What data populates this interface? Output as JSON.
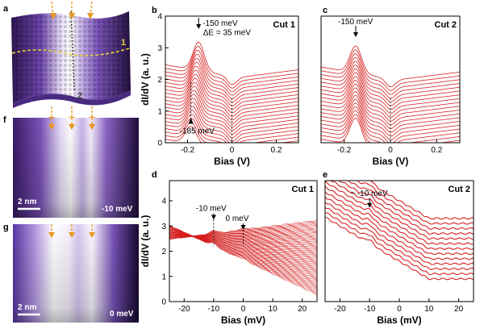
{
  "colors": {
    "curve": "#d61f1f",
    "orange": "#e8961e",
    "yellow": "#e8d23a",
    "axis": "#000000"
  },
  "panels": {
    "a": {
      "label": "a",
      "line1": "1",
      "line2": "2"
    },
    "f": {
      "label": "f",
      "scalebar": "2 nm",
      "energy": "-10 meV"
    },
    "g": {
      "label": "g",
      "scalebar": "2 nm",
      "energy": "0 meV"
    }
  },
  "chart_data": [
    {
      "id": "b",
      "type": "line",
      "label": "b",
      "cut": "Cut 1",
      "xlabel": "Bias (V)",
      "ylabel": "dI/dV (a. u.)",
      "xlim": [
        -0.3,
        0.3
      ],
      "ylim": [
        0,
        4
      ],
      "xticks": [
        -0.2,
        0,
        0.2
      ],
      "xtick_labels": [
        "-0.2",
        "0",
        "0.2"
      ],
      "yticks": [
        0,
        1,
        2,
        3,
        4
      ],
      "ytick_labels": [
        "0",
        "1",
        "2",
        "3",
        "4"
      ],
      "n_curves": 22,
      "peak_start_mV": -185,
      "peak_end_mV": -150,
      "annotations": [
        {
          "text": "-150 meV",
          "x": -0.15,
          "y": 3.9
        },
        {
          "text": "ΔE = 35 meV",
          "x": -0.13,
          "y": 3.4
        },
        {
          "text": "-185 meV",
          "x": -0.185,
          "y": 0.45
        }
      ]
    },
    {
      "id": "c",
      "type": "line",
      "label": "c",
      "cut": "Cut 2",
      "xlabel": "Bias (V)",
      "ylabel": "",
      "xlim": [
        -0.3,
        0.3
      ],
      "ylim": [
        0,
        4
      ],
      "xticks": [
        -0.2,
        0,
        0.2
      ],
      "xtick_labels": [
        "-0.2",
        "0",
        "0.2"
      ],
      "n_curves": 20,
      "peak_start_mV": -150,
      "peak_end_mV": -150,
      "annotations": [
        {
          "text": "-150 meV",
          "x": -0.15,
          "y": 3.9
        }
      ]
    },
    {
      "id": "d",
      "type": "line",
      "label": "d",
      "cut": "Cut 1",
      "xlabel": "Bias (mV)",
      "ylabel": "dI/dV (a. u.)",
      "xlim": [
        -25,
        25
      ],
      "ylim": [
        0,
        4.8
      ],
      "xticks": [
        -20,
        -10,
        0,
        10,
        20
      ],
      "xtick_labels": [
        "-20",
        "-10",
        "0",
        "10",
        "20"
      ],
      "yticks": [
        0,
        1,
        2,
        3,
        4
      ],
      "ytick_labels": [
        "0",
        "1",
        "2",
        "3",
        "4"
      ],
      "n_curves": 60,
      "annotations": [
        {
          "text": "-10 meV",
          "x": -10,
          "y": 3.6
        },
        {
          "text": "0 meV",
          "x": 0,
          "y": 3.2
        }
      ]
    },
    {
      "id": "e",
      "type": "line",
      "label": "e",
      "cut": "Cut 2",
      "xlabel": "Bias (mV)",
      "ylabel": "",
      "xlim": [
        -25,
        25
      ],
      "ylim": [
        0,
        4.8
      ],
      "xticks": [
        -20,
        -10,
        0,
        10,
        20
      ],
      "xtick_labels": [
        "-20",
        "-10",
        "0",
        "10",
        "20"
      ],
      "n_curves": 13,
      "annotations": [
        {
          "text": "~ -10 meV",
          "x": -10,
          "y": 4.2
        }
      ]
    }
  ]
}
